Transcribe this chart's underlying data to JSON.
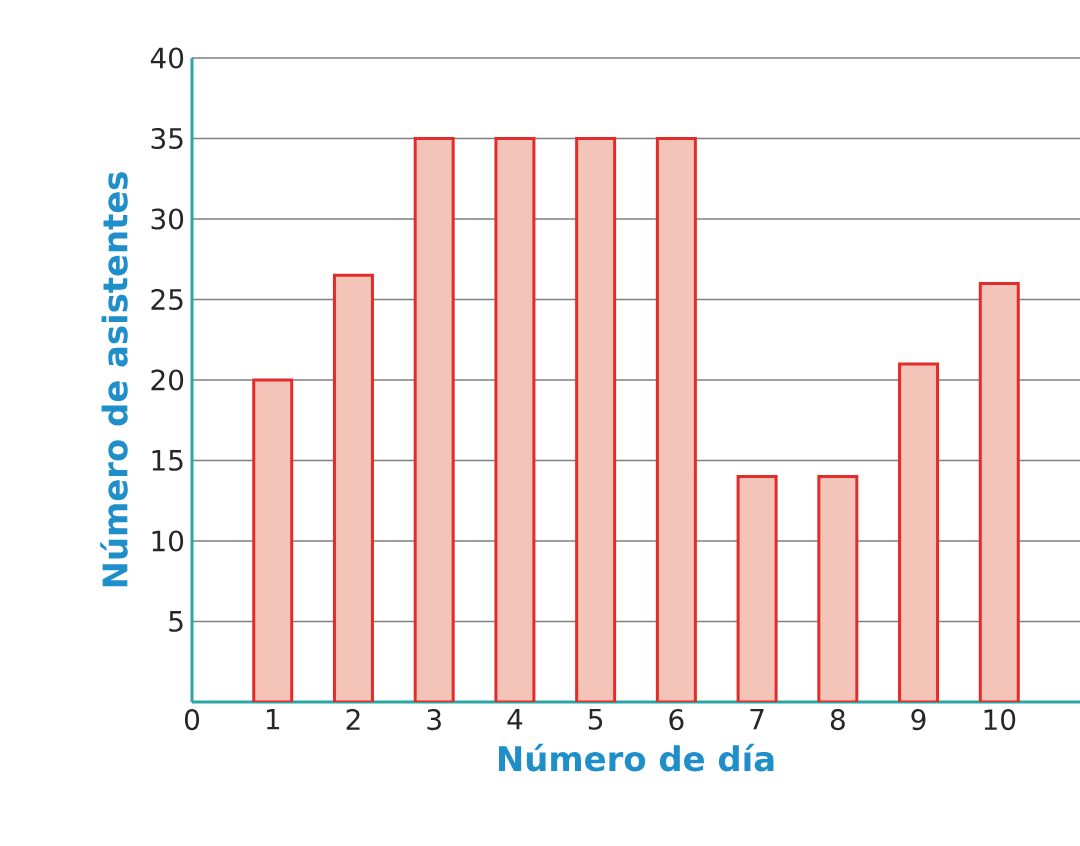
{
  "chart_data": {
    "type": "bar",
    "xlabel": "Número de día",
    "ylabel": "Número de asistentes",
    "x": [
      1,
      2,
      3,
      4,
      5,
      6,
      7,
      8,
      9,
      10
    ],
    "values": [
      20,
      26.5,
      35,
      35,
      35,
      35,
      14,
      14,
      21,
      26
    ],
    "color": "#f4c4b8",
    "xlim": [
      0,
      11
    ],
    "xticks": [
      0,
      1,
      2,
      3,
      4,
      5,
      6,
      7,
      8,
      9,
      10
    ],
    "ylim": [
      0,
      40
    ],
    "yticks": [
      5,
      10,
      15,
      20,
      25,
      30,
      35,
      40
    ],
    "grid": "y"
  }
}
